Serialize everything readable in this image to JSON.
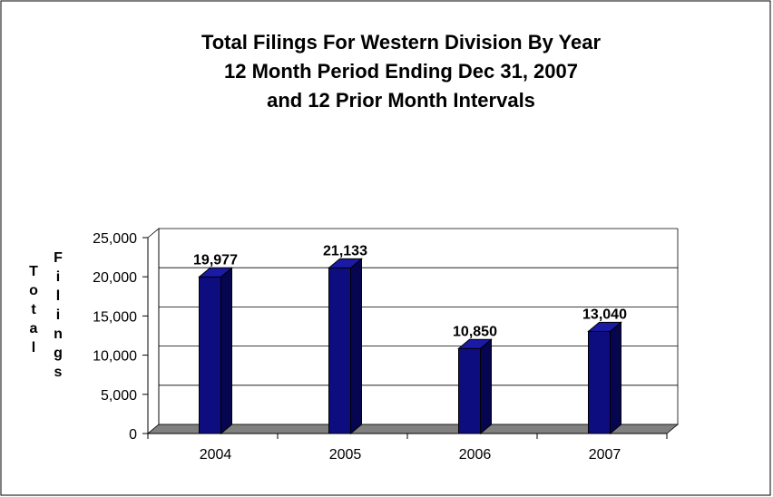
{
  "chart_data": {
    "type": "bar",
    "title": [
      "Total Filings For Western Division By Year",
      "12 Month Period Ending Dec 31, 2007",
      "and 12 Prior Month Intervals"
    ],
    "ylabel_words": [
      "Total",
      "Filings"
    ],
    "xlabel": "",
    "categories": [
      "2004",
      "2005",
      "2006",
      "2007"
    ],
    "values": [
      19977,
      21133,
      10850,
      13040
    ],
    "value_labels": [
      "19,977",
      "21,133",
      "10,850",
      "13,040"
    ],
    "ylim": [
      0,
      25000
    ],
    "yticks": [
      0,
      5000,
      10000,
      15000,
      20000,
      25000
    ],
    "ytick_labels": [
      "0",
      "5,000",
      "10,000",
      "15,000",
      "20,000",
      "25,000"
    ],
    "grid": true,
    "legend": "none",
    "colors": {
      "bar_front": "#0d0d80",
      "bar_side": "#060650",
      "bar_top": "#1a1aa6",
      "floor": "#808080",
      "grid": "#000000"
    }
  }
}
